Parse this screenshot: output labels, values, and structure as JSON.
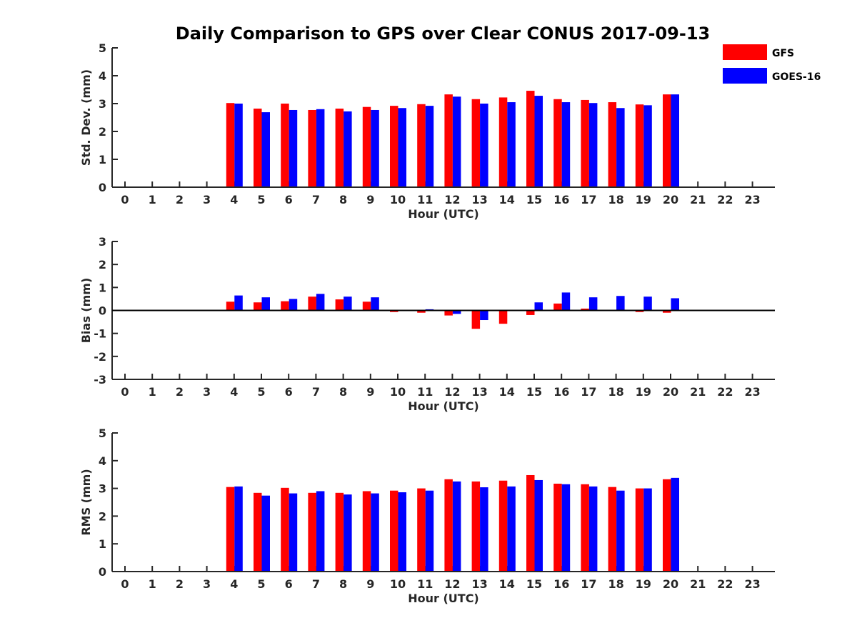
{
  "chart_data": {
    "title": "Daily Comparison to GPS over Clear CONUS 2017-09-13",
    "legend": {
      "placement": "top-right",
      "entries": [
        "GFS",
        "GOES-16"
      ]
    },
    "colors": {
      "GFS": "#ff0000",
      "GOES-16": "#0000ff",
      "axis": "#262626",
      "background": "#ffffff"
    },
    "panels": [
      {
        "type": "bar",
        "ylabel": "Std. Dev. (mm)",
        "xlabel": "Hour (UTC)",
        "ylim": [
          0,
          5
        ],
        "yticks": [
          "0",
          "1",
          "2",
          "3",
          "4",
          "5"
        ],
        "zero_line": false,
        "categories": [
          "0",
          "1",
          "2",
          "3",
          "4",
          "5",
          "6",
          "7",
          "8",
          "9",
          "10",
          "11",
          "12",
          "13",
          "14",
          "15",
          "16",
          "17",
          "18",
          "19",
          "20",
          "21",
          "22",
          "23"
        ],
        "series": [
          {
            "name": "GFS",
            "values": [
              null,
              null,
              null,
              null,
              3.02,
              2.82,
              3.0,
              2.77,
              2.82,
              2.88,
              2.92,
              2.98,
              3.33,
              3.16,
              3.22,
              3.46,
              3.16,
              3.13,
              3.05,
              2.97,
              3.33,
              null,
              null,
              null
            ]
          },
          {
            "name": "GOES-16",
            "values": [
              null,
              null,
              null,
              null,
              3.0,
              2.69,
              2.77,
              2.8,
              2.72,
              2.77,
              2.84,
              2.92,
              3.25,
              3.0,
              3.05,
              3.28,
              3.05,
              3.02,
              2.84,
              2.94,
              3.33,
              null,
              null,
              null
            ]
          }
        ]
      },
      {
        "type": "bar",
        "ylabel": "Bias (mm)",
        "xlabel": "Hour (UTC)",
        "ylim": [
          -3,
          3
        ],
        "yticks": [
          "-3",
          "-2",
          "-1",
          "0",
          "1",
          "2",
          "3"
        ],
        "zero_line": true,
        "categories": [
          "0",
          "1",
          "2",
          "3",
          "4",
          "5",
          "6",
          "7",
          "8",
          "9",
          "10",
          "11",
          "12",
          "13",
          "14",
          "15",
          "16",
          "17",
          "18",
          "19",
          "20",
          "21",
          "22",
          "23"
        ],
        "series": [
          {
            "name": "GFS",
            "values": [
              null,
              null,
              null,
              null,
              0.38,
              0.35,
              0.4,
              0.6,
              0.48,
              0.38,
              -0.07,
              -0.1,
              -0.22,
              -0.8,
              -0.58,
              -0.2,
              0.3,
              0.08,
              0.02,
              -0.07,
              -0.1,
              null,
              null,
              null
            ]
          },
          {
            "name": "GOES-16",
            "values": [
              null,
              null,
              null,
              null,
              0.65,
              0.57,
              0.5,
              0.72,
              0.6,
              0.57,
              0.02,
              0.05,
              -0.15,
              -0.42,
              null,
              0.35,
              0.78,
              0.57,
              0.63,
              0.6,
              0.53,
              null,
              null,
              null
            ]
          }
        ]
      },
      {
        "type": "bar",
        "ylabel": "RMS (mm)",
        "xlabel": "Hour (UTC)",
        "ylim": [
          0,
          5
        ],
        "yticks": [
          "0",
          "1",
          "2",
          "3",
          "4",
          "5"
        ],
        "zero_line": false,
        "categories": [
          "0",
          "1",
          "2",
          "3",
          "4",
          "5",
          "6",
          "7",
          "8",
          "9",
          "10",
          "11",
          "12",
          "13",
          "14",
          "15",
          "16",
          "17",
          "18",
          "19",
          "20",
          "21",
          "22",
          "23"
        ],
        "series": [
          {
            "name": "GFS",
            "values": [
              null,
              null,
              null,
              null,
              3.05,
              2.84,
              3.02,
              2.84,
              2.84,
              2.9,
              2.92,
              3.0,
              3.33,
              3.25,
              3.28,
              3.48,
              3.17,
              3.15,
              3.05,
              3.0,
              3.33,
              null,
              null,
              null
            ]
          },
          {
            "name": "GOES-16",
            "values": [
              null,
              null,
              null,
              null,
              3.07,
              2.74,
              2.82,
              2.9,
              2.78,
              2.82,
              2.86,
              2.92,
              3.25,
              3.04,
              3.07,
              3.3,
              3.15,
              3.07,
              2.92,
              3.0,
              3.38,
              null,
              null,
              null
            ]
          }
        ]
      }
    ]
  }
}
